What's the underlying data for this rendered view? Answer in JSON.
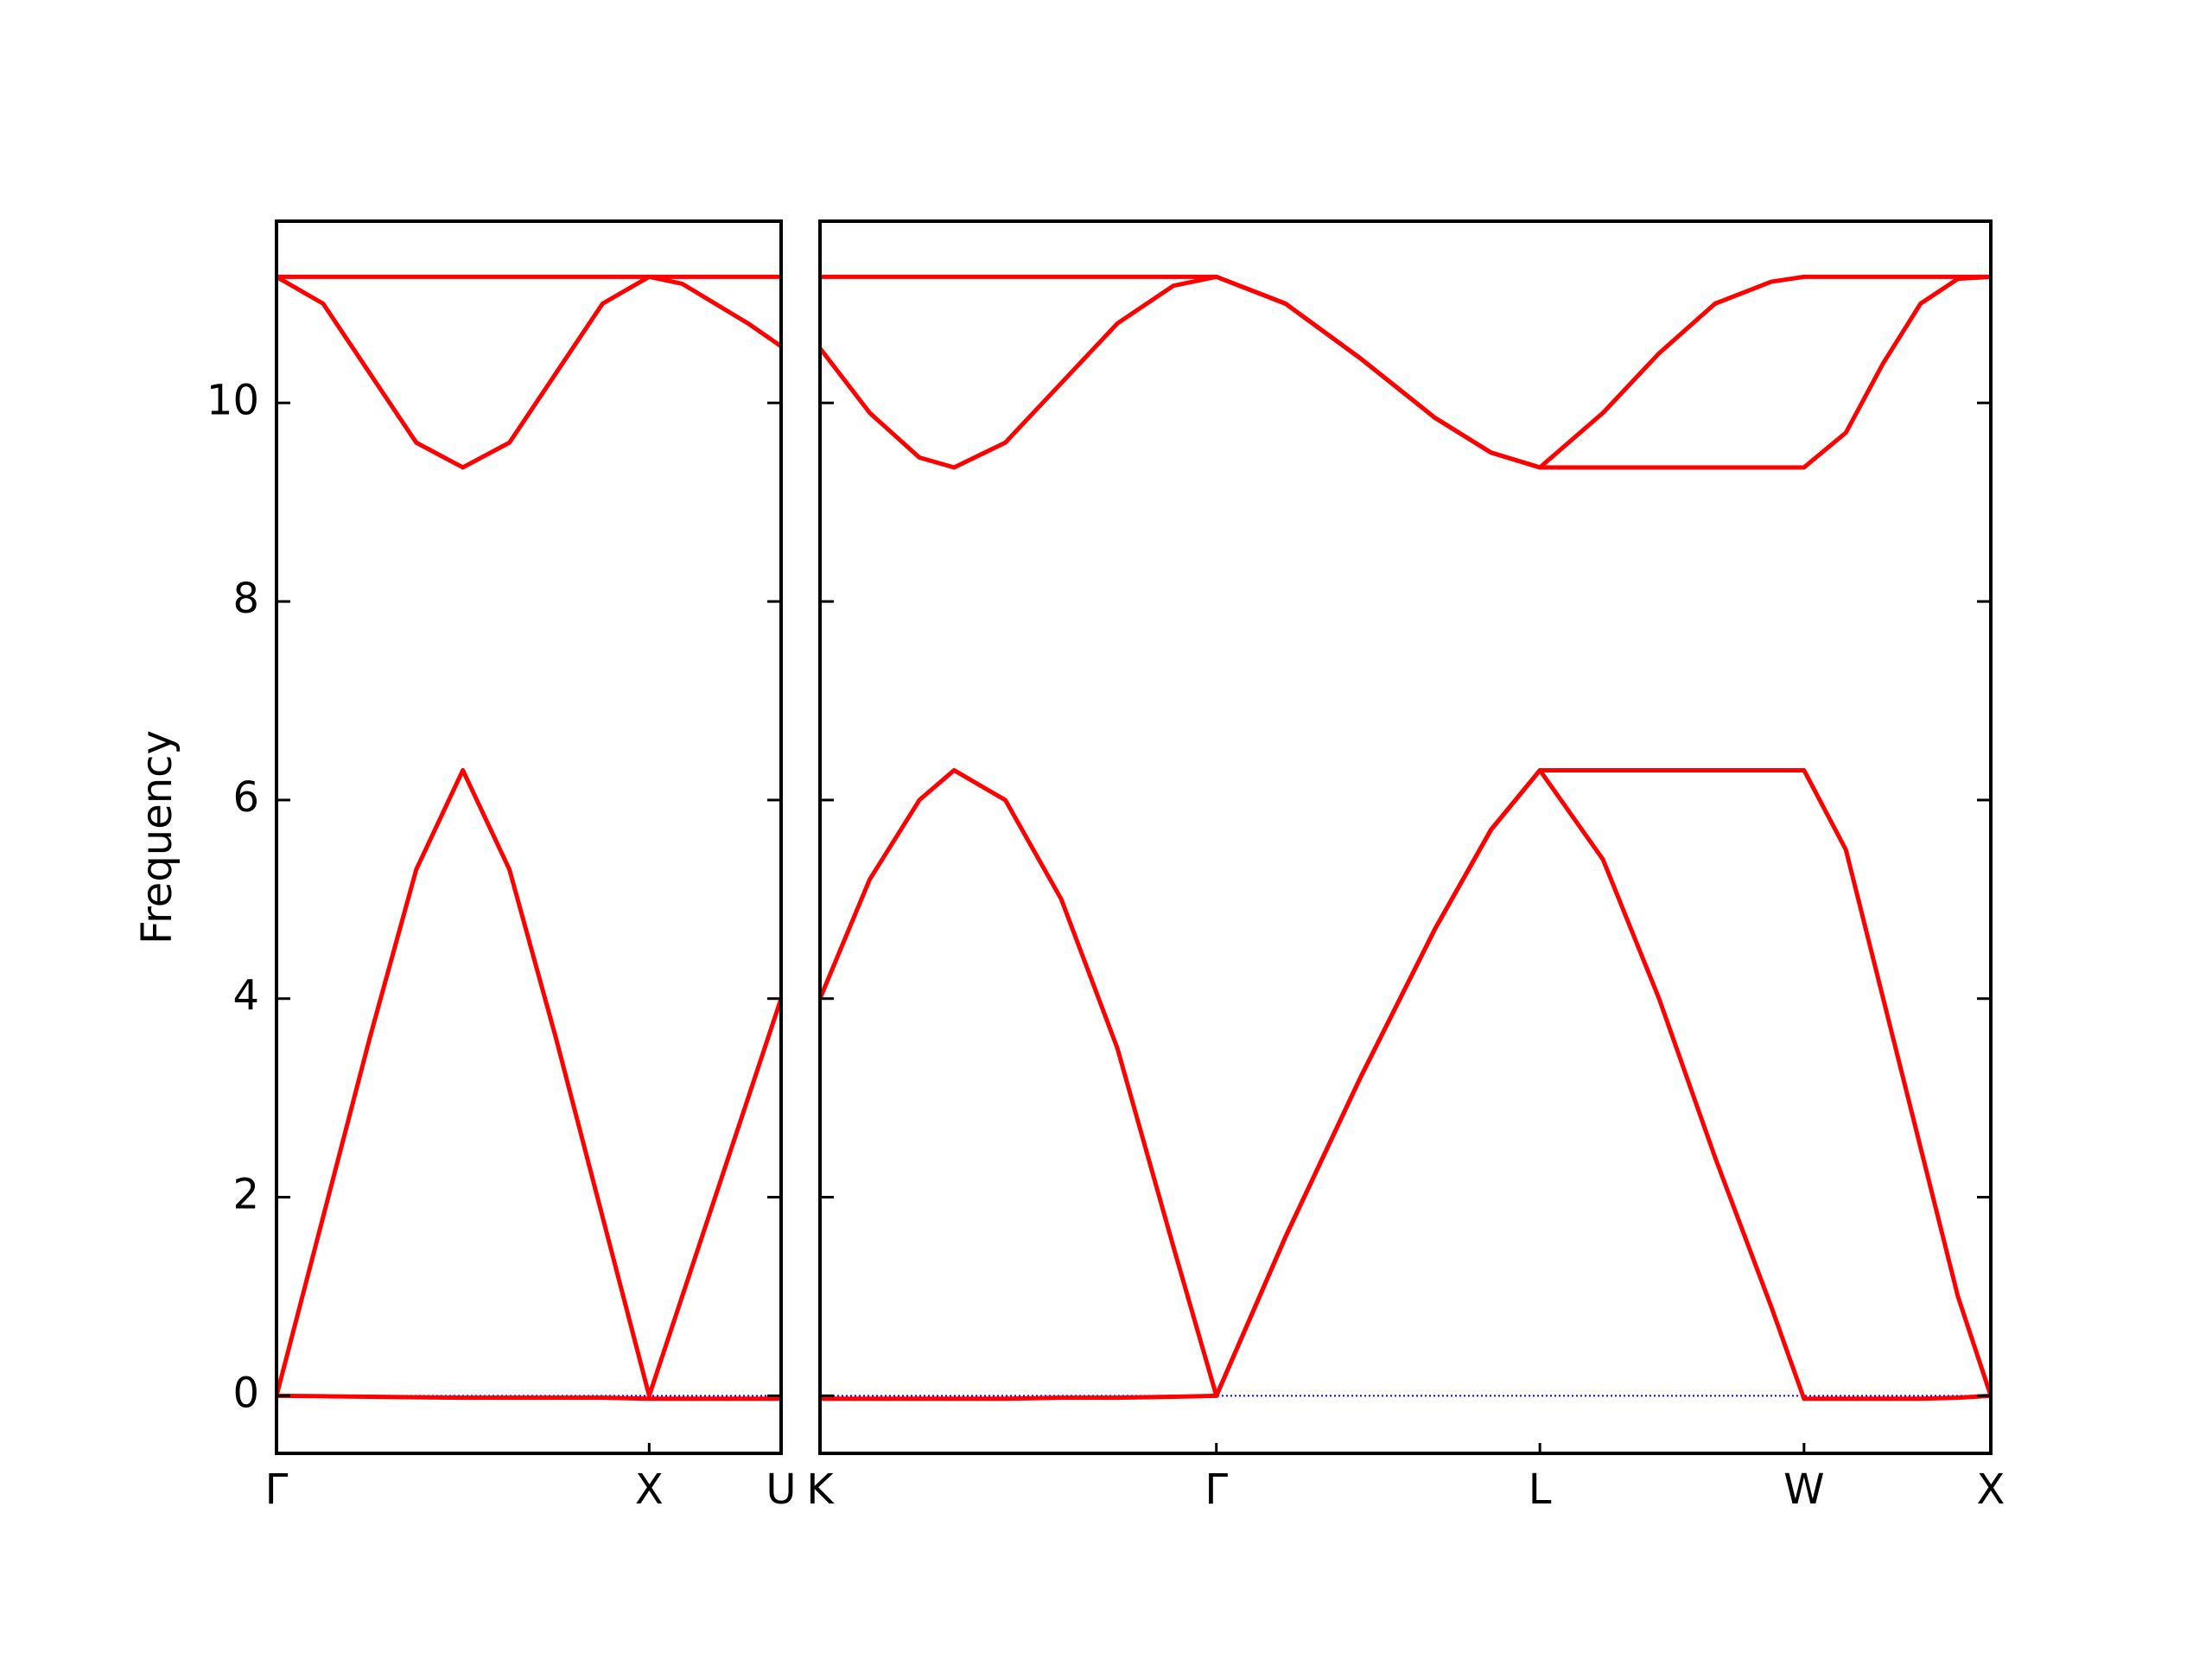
{
  "chart_data": [
    {
      "type": "line",
      "ylabel": "Frequency",
      "x": [
        0,
        0.125,
        0.25,
        0.375,
        0.5,
        0.625,
        0.75,
        0.875,
        1,
        1.0885,
        1.177,
        1.2655,
        1.354
      ],
      "series": [
        {
          "color": "#ff0000",
          "values": [
            0,
            -0.005,
            -0.01,
            -0.015,
            -0.02,
            -0.02,
            -0.02,
            -0.02,
            -0.03,
            -0.03,
            -0.03,
            -0.03,
            -0.03
          ]
        },
        {
          "color": "#ff0000",
          "values": [
            0,
            1.8,
            3.6,
            5.3,
            6.3,
            5.3,
            3.6,
            1.8,
            0,
            1.0,
            2.0,
            3.0,
            4.0
          ]
        },
        {
          "color": "#ff0000",
          "values": [
            11.27,
            11.0,
            10.3,
            9.6,
            9.35,
            9.6,
            10.3,
            11.0,
            11.27,
            11.2,
            11.0,
            10.8,
            10.57
          ]
        },
        {
          "color": "#ff0000",
          "values": [
            11.27,
            11.27,
            11.27,
            11.27,
            11.27,
            11.27,
            11.27,
            11.27,
            11.27,
            11.27,
            11.27,
            11.27,
            11.27
          ]
        }
      ],
      "hlines": [
        0
      ],
      "hline_color": "#0000ff",
      "xlim": [
        0,
        1.354
      ],
      "xticks": [
        {
          "value": 0,
          "label": "Γ"
        },
        {
          "value": 1,
          "label": "X"
        },
        {
          "value": 1.354,
          "label": "U"
        }
      ],
      "ylim": [
        -0.58,
        11.83
      ],
      "yticks": [
        0,
        2,
        4,
        6,
        8,
        10
      ]
    },
    {
      "type": "line",
      "x": [
        1.354,
        1.487,
        1.62,
        1.713,
        1.85,
        2.0,
        2.15,
        2.3,
        2.415,
        2.6,
        2.8,
        3.0,
        3.15,
        3.281,
        3.45,
        3.6,
        3.75,
        3.9,
        3.988,
        4.1,
        4.2,
        4.3,
        4.4,
        4.488
      ],
      "series": [
        {
          "color": "#ff0000",
          "values": [
            -0.03,
            -0.03,
            -0.03,
            -0.03,
            -0.03,
            -0.02,
            -0.02,
            -0.01,
            0,
            1.6,
            3.2,
            4.7,
            5.7,
            6.3,
            5.4,
            4.0,
            2.4,
            0.9,
            -0.03,
            -0.03,
            -0.03,
            -0.03,
            -0.02,
            0
          ]
        },
        {
          "color": "#ff0000",
          "values": [
            4.0,
            5.2,
            6.0,
            6.3,
            6.0,
            5.0,
            3.5,
            1.5,
            0,
            1.6,
            3.2,
            4.7,
            5.7,
            6.3,
            6.3,
            6.3,
            6.3,
            6.3,
            6.3,
            5.5,
            4.0,
            2.5,
            1.0,
            0
          ]
        },
        {
          "color": "#ff0000",
          "values": [
            10.55,
            9.9,
            9.45,
            9.35,
            9.6,
            10.2,
            10.8,
            11.18,
            11.27,
            11.0,
            10.45,
            9.85,
            9.5,
            9.35,
            9.35,
            9.35,
            9.35,
            9.35,
            9.35,
            9.7,
            10.4,
            11.0,
            11.25,
            11.27
          ]
        },
        {
          "color": "#ff0000",
          "values": [
            11.27,
            11.27,
            11.27,
            11.27,
            11.27,
            11.27,
            11.27,
            11.27,
            11.27,
            11.0,
            10.45,
            9.85,
            9.5,
            9.35,
            9.9,
            10.5,
            11.0,
            11.22,
            11.27,
            11.27,
            11.27,
            11.27,
            11.27,
            11.27
          ]
        }
      ],
      "hlines": [
        0
      ],
      "hline_color": "#0000ff",
      "xlim": [
        1.354,
        4.488
      ],
      "xticks": [
        {
          "value": 1.354,
          "label": "K"
        },
        {
          "value": 2.415,
          "label": "Γ"
        },
        {
          "value": 3.281,
          "label": "L"
        },
        {
          "value": 3.988,
          "label": "W"
        },
        {
          "value": 4.488,
          "label": "X"
        }
      ],
      "ylim": [
        -0.58,
        11.83
      ],
      "yticks": [
        0,
        2,
        4,
        6,
        8,
        10
      ]
    }
  ]
}
